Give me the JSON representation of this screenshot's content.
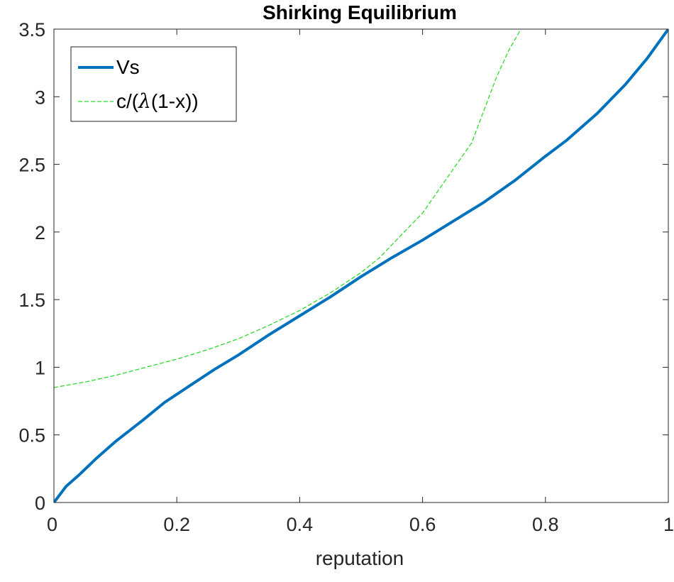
{
  "chart_data": {
    "type": "line",
    "title": "Shirking Equilibrium",
    "xlabel": "reputation",
    "ylabel": "",
    "xlim": [
      0,
      1
    ],
    "ylim": [
      0,
      3.5
    ],
    "xticks": [
      0,
      0.2,
      0.4,
      0.6,
      0.8,
      1
    ],
    "xtick_labels": [
      "0",
      "0.2",
      "0.4",
      "0.6",
      "0.8",
      "1"
    ],
    "yticks": [
      0,
      0.5,
      1,
      1.5,
      2,
      2.5,
      3,
      3.5
    ],
    "ytick_labels": [
      "0",
      "0.5",
      "1",
      "1.5",
      "2",
      "2.5",
      "3",
      "3.5"
    ],
    "grid": false,
    "box": true,
    "legend_position": "top-left",
    "series": [
      {
        "name": "Vs",
        "label": "Vs",
        "color": "#0072BD",
        "style": "solid",
        "x": [
          0,
          0.02,
          0.04,
          0.07,
          0.1,
          0.145,
          0.18,
          0.22,
          0.26,
          0.3,
          0.35,
          0.4,
          0.45,
          0.5,
          0.55,
          0.6,
          0.65,
          0.7,
          0.75,
          0.8,
          0.835,
          0.885,
          0.93,
          0.965,
          1
        ],
        "y": [
          0,
          0.12,
          0.2,
          0.33,
          0.45,
          0.61,
          0.74,
          0.86,
          0.98,
          1.09,
          1.24,
          1.38,
          1.52,
          1.67,
          1.81,
          1.94,
          2.08,
          2.22,
          2.38,
          2.56,
          2.68,
          2.88,
          3.09,
          3.28,
          3.5
        ]
      },
      {
        "name": "c/(λ(1-x))",
        "label_prefix": "c/(",
        "label_symbol": "λ",
        "label_suffix": "(1-x))",
        "color": "#2BDB2B",
        "style": "dashed",
        "x": [
          0,
          0.05,
          0.1,
          0.15,
          0.2,
          0.25,
          0.3,
          0.35,
          0.4,
          0.45,
          0.5,
          0.53,
          0.57,
          0.6,
          0.64,
          0.68,
          0.7,
          0.72,
          0.74,
          0.76
        ],
        "y": [
          0.85,
          0.89,
          0.94,
          1.0,
          1.06,
          1.13,
          1.21,
          1.31,
          1.42,
          1.55,
          1.7,
          1.81,
          2.0,
          2.14,
          2.4,
          2.66,
          2.9,
          3.14,
          3.34,
          3.5
        ]
      }
    ]
  }
}
